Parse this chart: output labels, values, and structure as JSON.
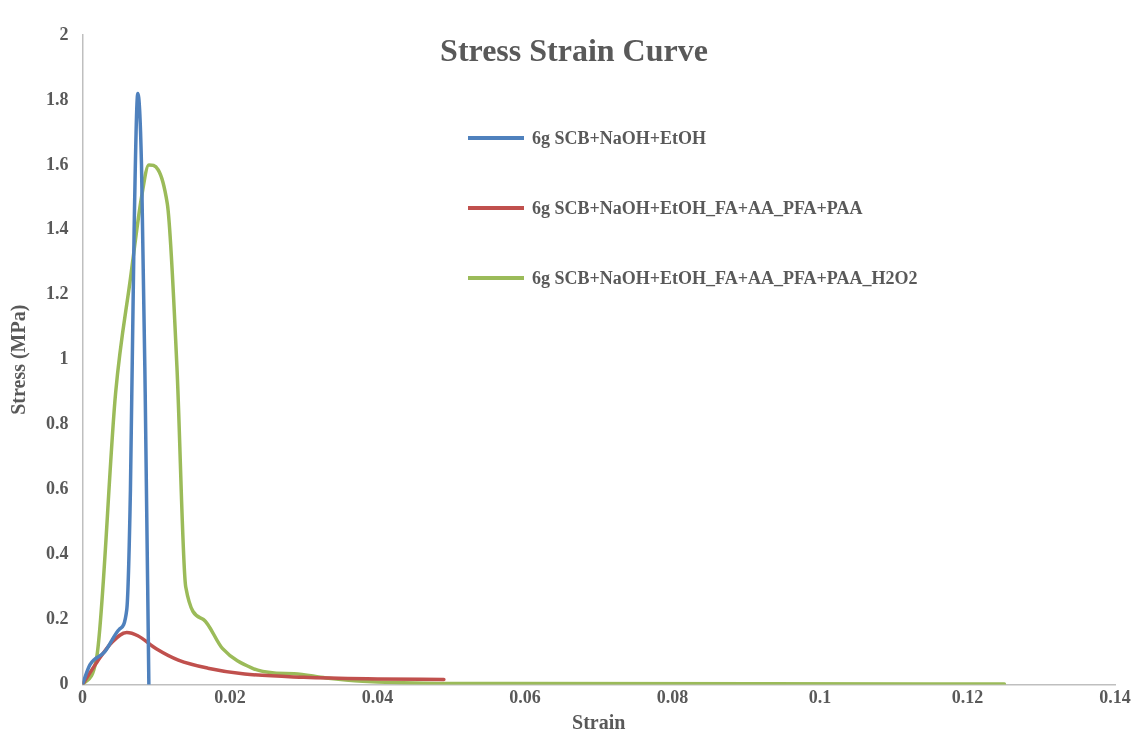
{
  "chart_data": {
    "type": "line",
    "title": "Stress Strain Curve",
    "xlabel": "Strain",
    "ylabel": "Stress (MPa)",
    "xlim": [
      0,
      0.14
    ],
    "xticks": [
      0,
      0.02,
      0.04,
      0.06,
      0.08,
      0.1,
      0.12,
      0.14
    ],
    "ylim": [
      0,
      2
    ],
    "yticks": [
      0,
      0.2,
      0.4,
      0.6,
      0.8,
      1,
      1.2,
      1.4,
      1.6,
      1.8,
      2
    ],
    "grid": false,
    "legend": "top right",
    "marker": "none",
    "line_style": "solid",
    "series": [
      {
        "name": "6g SCB+NaOH+EtOH",
        "color": "#4f81bd",
        "x": [
          0,
          0.001,
          0.003,
          0.005,
          0.006,
          0.0065,
          0.007,
          0.0075,
          0.008,
          0.0085,
          0.009
        ],
        "values": [
          0,
          0.06,
          0.1,
          0.17,
          0.23,
          0.6,
          1.4,
          1.82,
          1.6,
          0.9,
          0
        ]
      },
      {
        "name": "6g SCB+NaOH+EtOH_FA+AA_PFA+PAA",
        "color": "#c0504d",
        "x": [
          0,
          0.002,
          0.004,
          0.006,
          0.0075,
          0.01,
          0.013,
          0.017,
          0.022,
          0.03,
          0.04,
          0.049
        ],
        "values": [
          0,
          0.07,
          0.13,
          0.16,
          0.15,
          0.11,
          0.075,
          0.05,
          0.032,
          0.022,
          0.017,
          0.015
        ]
      },
      {
        "name": "6g SCB+NaOH+EtOH_FA+AA_PFA+PAA_H2O2",
        "color": "#9bbb59",
        "x": [
          0,
          0.0019,
          0.0045,
          0.0065,
          0.008,
          0.009,
          0.0115,
          0.0128,
          0.014,
          0.0164,
          0.019,
          0.023,
          0.026,
          0.0287,
          0.033,
          0.038,
          0.05,
          0.125
        ],
        "values": [
          0,
          0.08,
          0.9,
          1.25,
          1.5,
          1.6,
          1.48,
          0.98,
          0.3,
          0.2,
          0.11,
          0.05,
          0.035,
          0.033,
          0.02,
          0.01,
          0.003,
          0.001
        ]
      }
    ]
  }
}
